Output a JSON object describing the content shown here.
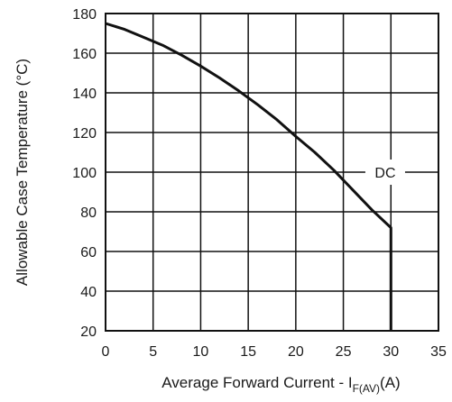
{
  "chart_data": {
    "type": "line",
    "xlabel": "Average Forward Current - I",
    "xlabel_subscript": "F(AV)",
    "xlabel_unit": "(A)",
    "ylabel": "Allowable Case Temperature (°C)",
    "xlim": [
      0,
      35
    ],
    "ylim": [
      20,
      180
    ],
    "xticks": [
      0,
      5,
      10,
      15,
      20,
      25,
      30,
      35
    ],
    "yticks": [
      20,
      40,
      60,
      80,
      100,
      120,
      140,
      160,
      180
    ],
    "grid": true,
    "series": [
      {
        "name": "DC",
        "x": [
          0,
          2,
          4,
          6,
          8,
          10,
          12,
          14,
          16,
          18,
          20,
          22,
          24,
          26,
          28,
          30,
          30
        ],
        "y": [
          175,
          172,
          168,
          164,
          159,
          153.5,
          147.5,
          141,
          134,
          126.5,
          118,
          110,
          101,
          91,
          81,
          72,
          20
        ]
      }
    ],
    "annotations": [
      {
        "text": "DC",
        "x": 29.4,
        "y": 100
      }
    ],
    "colors": {
      "line": "#111111",
      "grid": "#111111",
      "frame": "#111111"
    }
  }
}
